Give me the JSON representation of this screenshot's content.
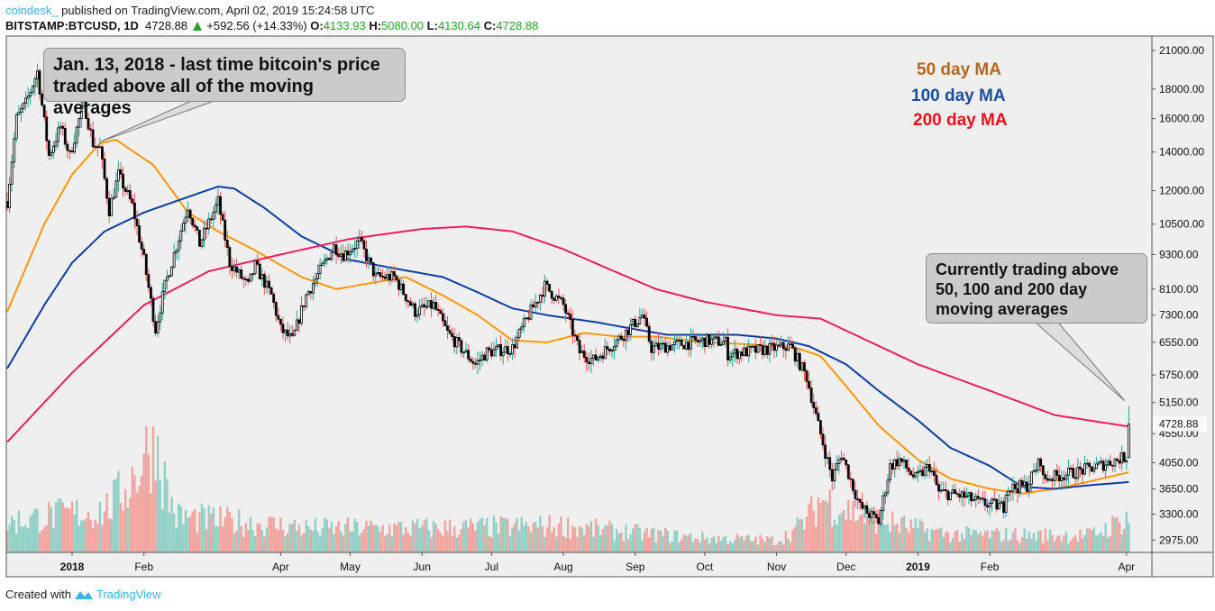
{
  "header": {
    "publisher": "coindesk_",
    "published_text": " published on TradingView.com, April 02, 2019 15:24:58 UTC",
    "symbol": "BITSTAMP:BTCUSD, 1D",
    "last": "4728.88",
    "change": "+592.56 (+14.33%)",
    "o_label": "O:",
    "o": "4133.93",
    "h_label": "H:",
    "h": "5080.00",
    "l_label": "L:",
    "l": "4130.64",
    "c_label": "C:",
    "c": "4728.88"
  },
  "annotations": {
    "note1": "Jan. 13, 2018 - last time bitcoin's price traded above all of the moving averages",
    "note2": "Currently trading above 50, 100 and 200 day moving averages"
  },
  "legend": [
    {
      "label": "50 day MA",
      "color": "#b8651b"
    },
    {
      "label": "100 day MA",
      "color": "#1a4f9c"
    },
    {
      "label": "200 day MA",
      "color": "#e8111a"
    }
  ],
  "footer": {
    "created": "Created with",
    "brand": "TradingView"
  },
  "chart_data": {
    "type": "candlestick",
    "y_scale": "log",
    "ylim": [
      2800,
      22000
    ],
    "x_range": [
      "2017-12-04",
      "2019-04-02"
    ],
    "y_ticks": [
      "21000.00",
      "18000.00",
      "16000.00",
      "14000.00",
      "12000.00",
      "10500.00",
      "9300.00",
      "8100.00",
      "7300.00",
      "6550.00",
      "5750.00",
      "5150.00",
      "4550.00",
      "4050.00",
      "3650.00",
      "3300.00",
      "2975.00"
    ],
    "x_ticks": [
      {
        "label": "2018",
        "date": "2018-01-01",
        "bold": true
      },
      {
        "label": "Feb",
        "date": "2018-02-01"
      },
      {
        "label": "Apr",
        "date": "2018-04-01"
      },
      {
        "label": "May",
        "date": "2018-05-01"
      },
      {
        "label": "Jun",
        "date": "2018-06-01"
      },
      {
        "label": "Jul",
        "date": "2018-07-01"
      },
      {
        "label": "Aug",
        "date": "2018-08-01"
      },
      {
        "label": "Sep",
        "date": "2018-09-01"
      },
      {
        "label": "Oct",
        "date": "2018-10-01"
      },
      {
        "label": "Nov",
        "date": "2018-11-01"
      },
      {
        "label": "Dec",
        "date": "2018-12-01"
      },
      {
        "label": "2019",
        "date": "2019-01-01",
        "bold": true
      },
      {
        "label": "Feb",
        "date": "2019-02-01"
      },
      {
        "label": "Apr",
        "date": "2019-04-01"
      }
    ],
    "last_price_label": "4728.88",
    "price_close_points": [
      [
        "2017-12-04",
        11500
      ],
      [
        "2017-12-08",
        16000
      ],
      [
        "2017-12-12",
        17000
      ],
      [
        "2017-12-17",
        19300
      ],
      [
        "2017-12-22",
        13800
      ],
      [
        "2017-12-27",
        15500
      ],
      [
        "2017-12-31",
        13800
      ],
      [
        "2018-01-06",
        17100
      ],
      [
        "2018-01-10",
        14500
      ],
      [
        "2018-01-13",
        14200
      ],
      [
        "2018-01-17",
        11100
      ],
      [
        "2018-01-21",
        12800
      ],
      [
        "2018-01-27",
        11300
      ],
      [
        "2018-02-01",
        9100
      ],
      [
        "2018-02-06",
        6900
      ],
      [
        "2018-02-10",
        8200
      ],
      [
        "2018-02-20",
        11300
      ],
      [
        "2018-02-25",
        9700
      ],
      [
        "2018-03-05",
        11500
      ],
      [
        "2018-03-10",
        9000
      ],
      [
        "2018-03-18",
        8200
      ],
      [
        "2018-03-21",
        8900
      ],
      [
        "2018-03-28",
        7900
      ],
      [
        "2018-04-01",
        6900
      ],
      [
        "2018-04-06",
        6600
      ],
      [
        "2018-04-12",
        7900
      ],
      [
        "2018-04-24",
        9600
      ],
      [
        "2018-04-28",
        9300
      ],
      [
        "2018-05-05",
        9800
      ],
      [
        "2018-05-12",
        8500
      ],
      [
        "2018-05-20",
        8500
      ],
      [
        "2018-05-29",
        7400
      ],
      [
        "2018-06-06",
        7600
      ],
      [
        "2018-06-12",
        6800
      ],
      [
        "2018-06-24",
        6000
      ],
      [
        "2018-06-29",
        6300
      ],
      [
        "2018-07-10",
        6400
      ],
      [
        "2018-07-17",
        7300
      ],
      [
        "2018-07-24",
        8200
      ],
      [
        "2018-08-01",
        7600
      ],
      [
        "2018-08-08",
        6300
      ],
      [
        "2018-08-14",
        6100
      ],
      [
        "2018-08-26",
        6700
      ],
      [
        "2018-09-04",
        7300
      ],
      [
        "2018-09-08",
        6400
      ],
      [
        "2018-09-20",
        6500
      ],
      [
        "2018-10-01",
        6600
      ],
      [
        "2018-10-10",
        6550
      ],
      [
        "2018-10-11",
        6250
      ],
      [
        "2018-11-07",
        6450
      ],
      [
        "2018-11-14",
        5700
      ],
      [
        "2018-11-19",
        4700
      ],
      [
        "2018-11-25",
        3800
      ],
      [
        "2018-11-29",
        4200
      ],
      [
        "2018-12-07",
        3400
      ],
      [
        "2018-12-15",
        3200
      ],
      [
        "2018-12-20",
        4000
      ],
      [
        "2018-12-24",
        4100
      ],
      [
        "2018-12-31",
        3800
      ],
      [
        "2019-01-06",
        4000
      ],
      [
        "2019-01-10",
        3600
      ],
      [
        "2019-01-20",
        3550
      ],
      [
        "2019-01-28",
        3450
      ],
      [
        "2019-02-07",
        3400
      ],
      [
        "2019-02-08",
        3650
      ],
      [
        "2019-02-17",
        3700
      ],
      [
        "2019-02-23",
        4100
      ],
      [
        "2019-02-24",
        3800
      ],
      [
        "2019-03-10",
        3900
      ],
      [
        "2019-03-20",
        4000
      ],
      [
        "2019-03-31",
        4140
      ],
      [
        "2019-04-01",
        4140
      ],
      [
        "2019-04-02",
        4728.88
      ]
    ],
    "series": [
      {
        "name": "50 day MA",
        "color": "#ff9800",
        "points": [
          [
            "2017-12-04",
            7400
          ],
          [
            "2017-12-20",
            10500
          ],
          [
            "2018-01-01",
            12800
          ],
          [
            "2018-01-13",
            14500
          ],
          [
            "2018-01-20",
            14700
          ],
          [
            "2018-02-05",
            13300
          ],
          [
            "2018-02-20",
            11000
          ],
          [
            "2018-03-05",
            10200
          ],
          [
            "2018-03-20",
            9500
          ],
          [
            "2018-04-10",
            8500
          ],
          [
            "2018-04-25",
            8100
          ],
          [
            "2018-05-10",
            8300
          ],
          [
            "2018-05-25",
            8500
          ],
          [
            "2018-06-10",
            7900
          ],
          [
            "2018-06-25",
            7300
          ],
          [
            "2018-07-10",
            6600
          ],
          [
            "2018-07-25",
            6550
          ],
          [
            "2018-08-10",
            6800
          ],
          [
            "2018-08-25",
            6700
          ],
          [
            "2018-09-10",
            6700
          ],
          [
            "2018-10-01",
            6550
          ],
          [
            "2018-10-20",
            6500
          ],
          [
            "2018-11-10",
            6400
          ],
          [
            "2018-11-20",
            6200
          ],
          [
            "2018-12-01",
            5500
          ],
          [
            "2018-12-15",
            4700
          ],
          [
            "2019-01-01",
            4100
          ],
          [
            "2019-01-15",
            3800
          ],
          [
            "2019-02-01",
            3650
          ],
          [
            "2019-02-15",
            3580
          ],
          [
            "2019-03-01",
            3650
          ],
          [
            "2019-03-15",
            3750
          ],
          [
            "2019-04-02",
            3900
          ]
        ]
      },
      {
        "name": "100 day MA",
        "color": "#0d3d9e",
        "points": [
          [
            "2017-12-04",
            5900
          ],
          [
            "2017-12-20",
            7600
          ],
          [
            "2018-01-01",
            9000
          ],
          [
            "2018-01-15",
            10200
          ],
          [
            "2018-02-01",
            11000
          ],
          [
            "2018-02-20",
            11700
          ],
          [
            "2018-03-05",
            12200
          ],
          [
            "2018-03-12",
            12100
          ],
          [
            "2018-03-25",
            11200
          ],
          [
            "2018-04-10",
            10000
          ],
          [
            "2018-05-01",
            9100
          ],
          [
            "2018-05-20",
            8800
          ],
          [
            "2018-06-10",
            8500
          ],
          [
            "2018-06-25",
            8000
          ],
          [
            "2018-07-10",
            7500
          ],
          [
            "2018-07-25",
            7300
          ],
          [
            "2018-08-15",
            7100
          ],
          [
            "2018-09-01",
            6900
          ],
          [
            "2018-09-15",
            6750
          ],
          [
            "2018-10-15",
            6750
          ],
          [
            "2018-11-01",
            6650
          ],
          [
            "2018-11-15",
            6450
          ],
          [
            "2018-12-01",
            6000
          ],
          [
            "2018-12-15",
            5400
          ],
          [
            "2019-01-01",
            4800
          ],
          [
            "2019-01-15",
            4300
          ],
          [
            "2019-02-01",
            4000
          ],
          [
            "2019-02-15",
            3680
          ],
          [
            "2019-03-01",
            3650
          ],
          [
            "2019-03-15",
            3700
          ],
          [
            "2019-04-02",
            3750
          ]
        ]
      },
      {
        "name": "200 day MA",
        "color": "#e91e63",
        "points": [
          [
            "2017-12-04",
            4400
          ],
          [
            "2018-01-01",
            5800
          ],
          [
            "2018-02-01",
            7600
          ],
          [
            "2018-03-01",
            8700
          ],
          [
            "2018-04-01",
            9300
          ],
          [
            "2018-05-01",
            9900
          ],
          [
            "2018-06-01",
            10300
          ],
          [
            "2018-06-20",
            10400
          ],
          [
            "2018-07-10",
            10200
          ],
          [
            "2018-08-01",
            9500
          ],
          [
            "2018-08-20",
            8800
          ],
          [
            "2018-09-10",
            8100
          ],
          [
            "2018-10-01",
            7700
          ],
          [
            "2018-11-01",
            7300
          ],
          [
            "2018-11-20",
            7200
          ],
          [
            "2018-12-10",
            6600
          ],
          [
            "2019-01-01",
            6000
          ],
          [
            "2019-02-01",
            5400
          ],
          [
            "2019-03-01",
            4900
          ],
          [
            "2019-04-02",
            4680
          ]
        ]
      }
    ],
    "volume_relative_points": [
      [
        "2017-12-04",
        0.25
      ],
      [
        "2017-12-20",
        0.3
      ],
      [
        "2018-01-15",
        0.35
      ],
      [
        "2018-02-06",
        1.0
      ],
      [
        "2018-02-15",
        0.3
      ],
      [
        "2018-03-15",
        0.25
      ],
      [
        "2018-04-15",
        0.2
      ],
      [
        "2018-06-01",
        0.2
      ],
      [
        "2018-08-01",
        0.22
      ],
      [
        "2018-10-01",
        0.12
      ],
      [
        "2018-11-01",
        0.1
      ],
      [
        "2018-11-20",
        0.45
      ],
      [
        "2018-12-10",
        0.3
      ],
      [
        "2019-01-15",
        0.15
      ],
      [
        "2019-03-15",
        0.14
      ],
      [
        "2019-04-02",
        0.3
      ]
    ],
    "colors": {
      "up_wick": "#26a69a",
      "down_wick": "#ef5350",
      "vol_up": "#8fcfc5",
      "vol_down": "#f2a39d",
      "background": "#efefef"
    }
  }
}
